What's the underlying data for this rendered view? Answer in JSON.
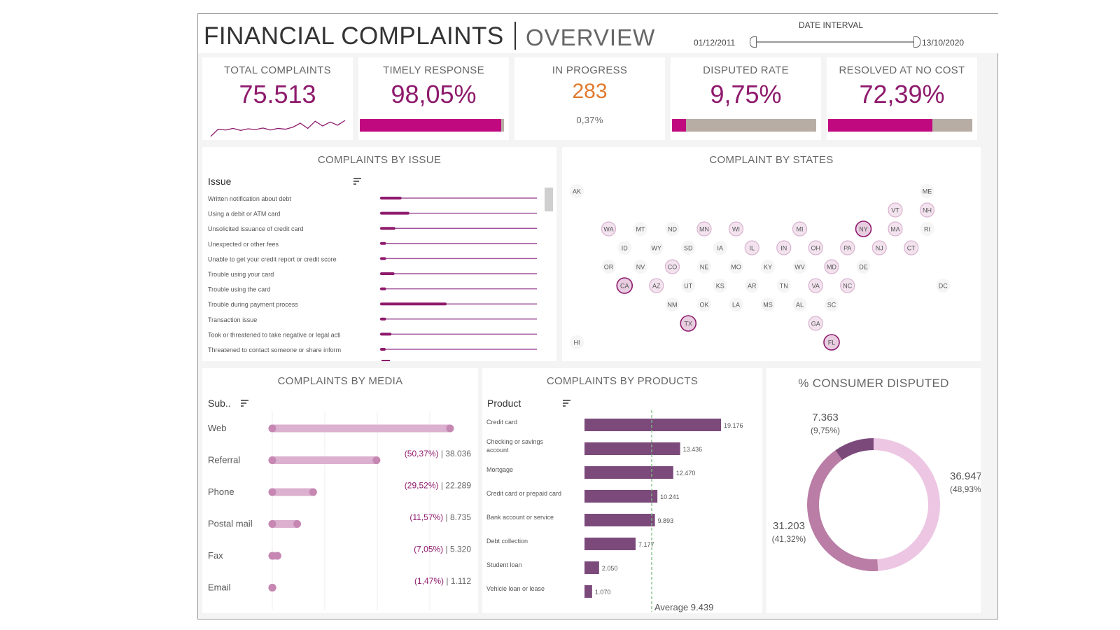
{
  "header": {
    "title": "FINANCIAL COMPLAINTS",
    "separator": "|",
    "subtitle": "OVERVIEW",
    "date_interval": {
      "label": "DATE INTERVAL",
      "start": "01/12/2011",
      "end": "13/10/2020"
    }
  },
  "kpis": {
    "total": {
      "title": "TOTAL COMPLAINTS",
      "value": "75.513"
    },
    "timely": {
      "title": "TIMELY RESPONSE",
      "value": "98,05%",
      "fraction": 0.9805
    },
    "progress": {
      "title": "IN PROGRESS",
      "value": "283",
      "sub": "0,37%"
    },
    "disputed": {
      "title": "DISPUTED RATE",
      "value": "9,75%",
      "fraction": 0.0975
    },
    "resolved": {
      "title": "RESOLVED AT NO COST",
      "value": "72,39%",
      "fraction": 0.7239
    }
  },
  "colors": {
    "accent": "#8e1a6c",
    "accent_bar": "#c0097e",
    "orange": "#e07a2e",
    "track": "#b8ada5",
    "line": "#9c3d87",
    "media": "#d9a3c7",
    "product": "#7b4a7b"
  },
  "chart_data": [
    {
      "id": "total_sparkline",
      "type": "line",
      "x": [
        "2011-12",
        "2012-06",
        "2012-12",
        "2013-06",
        "2013-12",
        "2014-06",
        "2014-12",
        "2015-06",
        "2015-12",
        "2016-06",
        "2016-12",
        "2017-06",
        "2017-12",
        "2018-06",
        "2018-12",
        "2019-06",
        "2019-12",
        "2020-06",
        "2020-10"
      ],
      "values": [
        2,
        20,
        18,
        22,
        17,
        21,
        19,
        23,
        18,
        22,
        20,
        25,
        35,
        22,
        40,
        28,
        38,
        30,
        42
      ]
    },
    {
      "id": "issues",
      "type": "bar",
      "title": "COMPLAINTS BY ISSUE",
      "header": "Issue",
      "categories": [
        "Written notification about debt",
        "Using a debit or ATM card",
        "Unsolicited issuance of credit card",
        "Unexpected or other fees",
        "Unable to get your credit report or credit score",
        "Trouble using your card",
        "Trouble using the card",
        "Trouble during payment process",
        "Transaction issue",
        "Took or threatened to take negative or legal acti",
        "Threatened to contact someone or share inform"
      ],
      "values": [
        1200,
        1700,
        800,
        200,
        200,
        750,
        200,
        4100,
        200,
        550,
        150
      ],
      "xlim": [
        0,
        10000
      ]
    },
    {
      "id": "states",
      "type": "scatter",
      "title": "COMPLAINT BY STATES",
      "highlighted": [
        "CA",
        "TX",
        "FL",
        "NY",
        "IL",
        "PA",
        "NJ",
        "GA",
        "VA",
        "OH",
        "MI",
        "WA",
        "MN",
        "WI",
        "IN",
        "NC",
        "MD",
        "AZ",
        "CO",
        "MA",
        "CT",
        "VT",
        "NH"
      ],
      "strong": [
        "CA",
        "TX",
        "FL",
        "NY"
      ],
      "states": [
        {
          "code": "AK",
          "col": 0,
          "row": 0
        },
        {
          "code": "ME",
          "col": 11,
          "row": 0
        },
        {
          "code": "VT",
          "col": 10,
          "row": 1
        },
        {
          "code": "NH",
          "col": 11,
          "row": 1
        },
        {
          "code": "WA",
          "col": 1,
          "row": 2
        },
        {
          "code": "MT",
          "col": 2,
          "row": 2
        },
        {
          "code": "ND",
          "col": 3,
          "row": 2
        },
        {
          "code": "MN",
          "col": 4,
          "row": 2
        },
        {
          "code": "WI",
          "col": 5,
          "row": 2
        },
        {
          "code": "MI",
          "col": 7,
          "row": 2
        },
        {
          "code": "NY",
          "col": 9,
          "row": 2
        },
        {
          "code": "MA",
          "col": 10,
          "row": 2
        },
        {
          "code": "RI",
          "col": 11,
          "row": 2
        },
        {
          "code": "ID",
          "col": 1.5,
          "row": 3
        },
        {
          "code": "WY",
          "col": 2.5,
          "row": 3
        },
        {
          "code": "SD",
          "col": 3.5,
          "row": 3
        },
        {
          "code": "IA",
          "col": 4.5,
          "row": 3
        },
        {
          "code": "IL",
          "col": 5.5,
          "row": 3
        },
        {
          "code": "IN",
          "col": 6.5,
          "row": 3
        },
        {
          "code": "OH",
          "col": 7.5,
          "row": 3
        },
        {
          "code": "PA",
          "col": 8.5,
          "row": 3
        },
        {
          "code": "NJ",
          "col": 9.5,
          "row": 3
        },
        {
          "code": "CT",
          "col": 10.5,
          "row": 3
        },
        {
          "code": "OR",
          "col": 1,
          "row": 4
        },
        {
          "code": "NV",
          "col": 2,
          "row": 4
        },
        {
          "code": "CO",
          "col": 3,
          "row": 4
        },
        {
          "code": "NE",
          "col": 4,
          "row": 4
        },
        {
          "code": "MO",
          "col": 5,
          "row": 4
        },
        {
          "code": "KY",
          "col": 6,
          "row": 4
        },
        {
          "code": "WV",
          "col": 7,
          "row": 4
        },
        {
          "code": "MD",
          "col": 8,
          "row": 4
        },
        {
          "code": "DE",
          "col": 9,
          "row": 4
        },
        {
          "code": "CA",
          "col": 1.5,
          "row": 5
        },
        {
          "code": "AZ",
          "col": 2.5,
          "row": 5
        },
        {
          "code": "UT",
          "col": 3.5,
          "row": 5
        },
        {
          "code": "KS",
          "col": 4.5,
          "row": 5
        },
        {
          "code": "AR",
          "col": 5.5,
          "row": 5
        },
        {
          "code": "TN",
          "col": 6.5,
          "row": 5
        },
        {
          "code": "VA",
          "col": 7.5,
          "row": 5
        },
        {
          "code": "NC",
          "col": 8.5,
          "row": 5
        },
        {
          "code": "DC",
          "col": 11.5,
          "row": 5
        },
        {
          "code": "NM",
          "col": 3,
          "row": 6
        },
        {
          "code": "OK",
          "col": 4,
          "row": 6
        },
        {
          "code": "LA",
          "col": 5,
          "row": 6
        },
        {
          "code": "MS",
          "col": 6,
          "row": 6
        },
        {
          "code": "AL",
          "col": 7,
          "row": 6
        },
        {
          "code": "SC",
          "col": 8,
          "row": 6
        },
        {
          "code": "TX",
          "col": 3.5,
          "row": 7
        },
        {
          "code": "GA",
          "col": 7.5,
          "row": 7
        },
        {
          "code": "HI",
          "col": 0,
          "row": 8
        },
        {
          "code": "FL",
          "col": 8,
          "row": 8
        }
      ]
    },
    {
      "id": "media",
      "type": "bar",
      "title": "COMPLAINTS BY MEDIA",
      "header": "Sub..",
      "categories": [
        "Web",
        "Referral",
        "Phone",
        "Postal mail",
        "Fax",
        "Email"
      ],
      "values": [
        38036,
        22289,
        8735,
        5320,
        1112,
        21
      ],
      "labels": [
        "(50,37%) | 38.036",
        "(29,52%) | 22.289",
        "(11,57%) | 8.735",
        "(7,05%) | 5.320",
        "(1,47%) | 1.112"
      ],
      "xlim": [
        0,
        40000
      ]
    },
    {
      "id": "products",
      "type": "bar",
      "title": "COMPLAINTS BY PRODUCTS",
      "header": "Product",
      "categories": [
        "Credit card",
        "Checking or savings|account",
        "Mortgage",
        "Credit card or prepaid card",
        "Bank account or service",
        "Debt collection",
        "Student loan",
        "Vehicle loan or lease"
      ],
      "values": [
        19176,
        13436,
        12470,
        10241,
        9893,
        7177,
        2050,
        1070
      ],
      "labels": [
        "19.176",
        "13.436",
        "12.470",
        "10.241",
        "9.893",
        "7.177",
        "2.050",
        "1.070"
      ],
      "average": 9439,
      "average_label": "Average 9.439",
      "xlim": [
        0,
        22000
      ]
    },
    {
      "id": "disputed",
      "type": "pie",
      "title": "% CONSUMER DISPUTED",
      "values": [
        36947,
        31203,
        7363
      ],
      "labels": [
        "36.947",
        "31.203",
        "7.363"
      ],
      "percents": [
        "(48,93%)",
        "(41,32%)",
        "(9,75%)"
      ],
      "colors": [
        "#ecc6e2",
        "#b97da6",
        "#7b4a7b"
      ]
    }
  ]
}
